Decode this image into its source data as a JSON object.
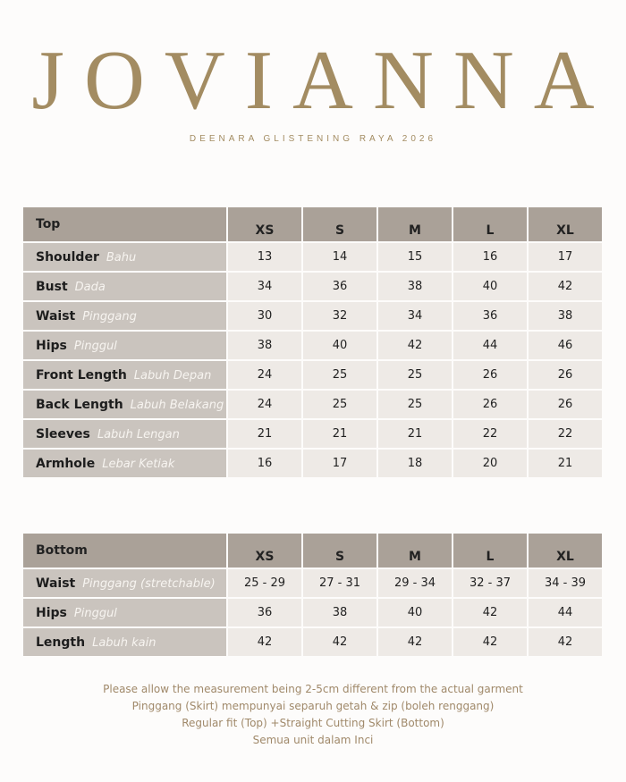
{
  "header": {
    "title": "JOVIANNA",
    "subtitle": "DEENARA GLISTENING RAYA 2026"
  },
  "tables": [
    {
      "header": [
        "Top",
        "XS",
        "S",
        "M",
        "L",
        "XL"
      ],
      "rows": [
        {
          "label": "Shoulder",
          "label_ms": "Bahu",
          "values": [
            13,
            14,
            15,
            16,
            17
          ]
        },
        {
          "label": "Bust",
          "label_ms": "Dada",
          "values": [
            34,
            36,
            38,
            40,
            42
          ]
        },
        {
          "label": "Waist",
          "label_ms": "Pinggang",
          "values": [
            30,
            32,
            34,
            36,
            38
          ]
        },
        {
          "label": "Hips",
          "label_ms": "Pinggul",
          "values": [
            38,
            40,
            42,
            44,
            46
          ]
        },
        {
          "label": "Front Length",
          "label_ms": "Labuh Depan",
          "values": [
            24,
            25,
            25,
            26,
            26
          ]
        },
        {
          "label": "Back Length",
          "label_ms": "Labuh Belakang",
          "values": [
            24,
            25,
            25,
            26,
            26
          ]
        },
        {
          "label": "Sleeves",
          "label_ms": "Labuh Lengan",
          "values": [
            21,
            21,
            21,
            22,
            22
          ]
        },
        {
          "label": "Armhole",
          "label_ms": "Lebar Ketiak",
          "values": [
            16,
            17,
            18,
            20,
            21
          ]
        }
      ]
    },
    {
      "header": [
        "Bottom",
        "XS",
        "S",
        "M",
        "L",
        "XL"
      ],
      "rows": [
        {
          "label": "Waist",
          "label_ms": "Pinggang (stretchable)",
          "values": [
            "25 - 29",
            "27 - 31",
            "29 - 34",
            "32 - 37",
            "34 - 39"
          ]
        },
        {
          "label": "Hips",
          "label_ms": "Pinggul",
          "values": [
            36,
            38,
            40,
            42,
            44
          ]
        },
        {
          "label": "Length",
          "label_ms": "Labuh kain",
          "values": [
            42,
            42,
            42,
            42,
            42
          ]
        }
      ]
    }
  ],
  "notes": [
    "Please allow the measurement being 2-5cm different from the actual garment",
    "Pinggang (Skirt) mempunyai separuh getah & zip (boleh renggang)",
    "Regular fit (Top) +Straight Cutting Skirt (Bottom)",
    "Semua unit dalam Inci"
  ]
}
